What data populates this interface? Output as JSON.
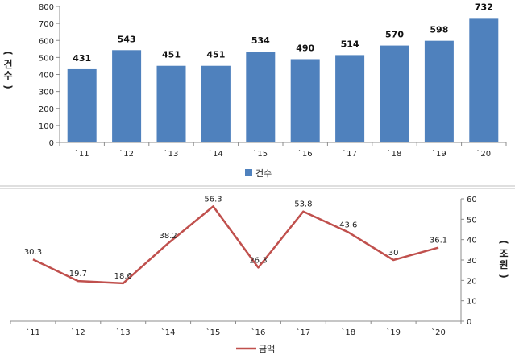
{
  "chart_data": [
    {
      "type": "bar",
      "categories": [
        "`11",
        "`12",
        "`13",
        "`14",
        "`15",
        "`16",
        "`17",
        "`18",
        "`19",
        "`20"
      ],
      "series": [
        {
          "name": "건수",
          "values": [
            431,
            543,
            451,
            451,
            534,
            490,
            514,
            570,
            598,
            732
          ],
          "color": "#4f81bd"
        }
      ],
      "ylabel": "(건 수)",
      "ylim": [
        0,
        800
      ],
      "yticks": [
        0,
        100,
        200,
        300,
        400,
        500,
        600,
        700,
        800
      ],
      "legend": "bottom",
      "grid": false
    },
    {
      "type": "line",
      "categories": [
        "`11",
        "`12",
        "`13",
        "`14",
        "`15",
        "`16",
        "`17",
        "`18",
        "`19",
        "`20"
      ],
      "series": [
        {
          "name": "금액",
          "values": [
            30.3,
            19.7,
            18.6,
            38.2,
            56.3,
            26.3,
            53.8,
            43.6,
            30,
            36.1
          ],
          "color": "#c0504d"
        }
      ],
      "ylabel": "(조 원)",
      "y_axis_side": "right",
      "ylim": [
        0,
        60
      ],
      "yticks": [
        0,
        10,
        20,
        30,
        40,
        50,
        60
      ],
      "legend": "bottom",
      "grid": false
    }
  ],
  "ui": {
    "bar_ylabel_chars": [
      "(",
      "건",
      "수",
      ")"
    ],
    "line_ylabel_chars": [
      "(",
      "조",
      "원",
      ")"
    ]
  }
}
